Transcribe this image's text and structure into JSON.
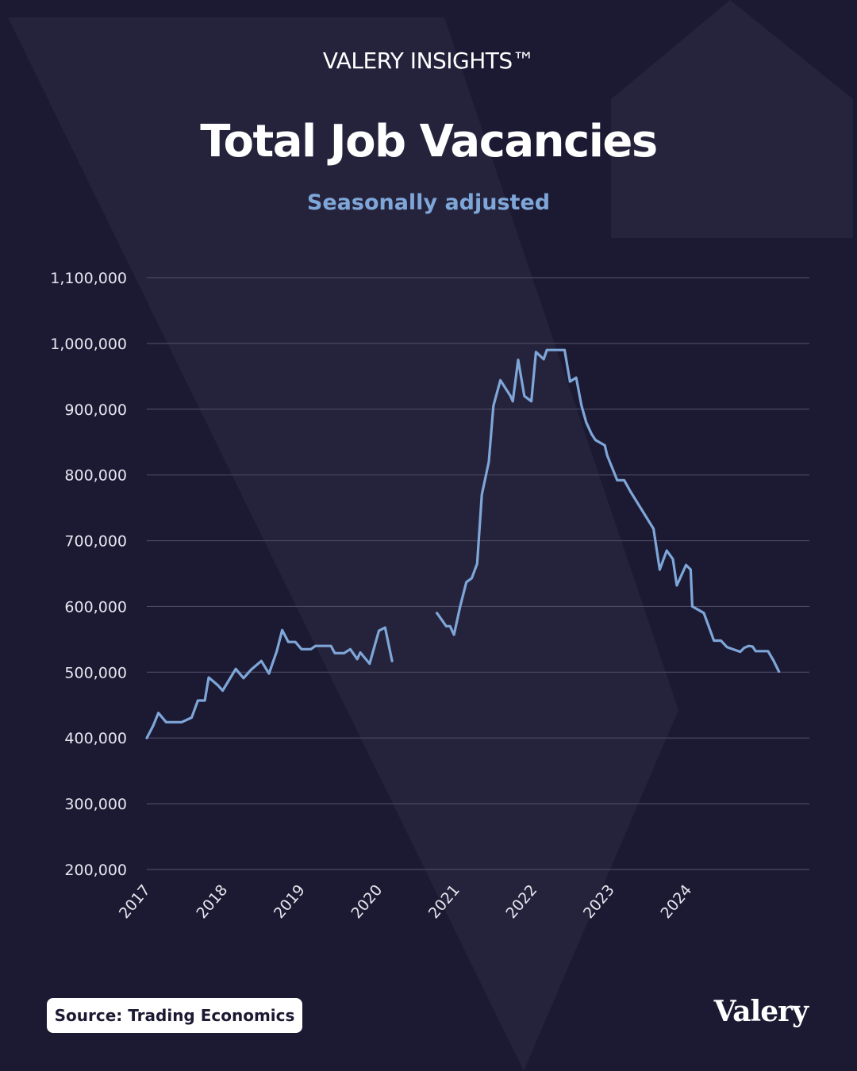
{
  "header": {
    "brand": "VALERY INSIGHTS™",
    "title": "Total Job Vacancies",
    "subtitle": "Seasonally adjusted"
  },
  "footer": {
    "source": "Source: Trading Economics",
    "logo": "Valery"
  },
  "colors": {
    "background": "#1c1a33",
    "line": "#7ea6d8",
    "grid": "#4a4862",
    "text": "#ffffff",
    "tick_text": "#e6e6ee"
  },
  "chart_data": {
    "type": "line",
    "title": "Total Job Vacancies",
    "subtitle": "Seasonally adjusted",
    "ylim": [
      200000,
      1100000
    ],
    "yticks": [
      1100000,
      1000000,
      900000,
      800000,
      700000,
      600000,
      500000,
      400000,
      300000,
      200000
    ],
    "ytick_labels": [
      "1,100,000",
      "1,000,000",
      "900,000",
      "800,000",
      "700,000",
      "600,000",
      "500,000",
      "400,000",
      "300,000",
      "200,000"
    ],
    "xticks": [
      2017,
      2018,
      2019,
      2020,
      2021,
      2022,
      2023,
      2024
    ],
    "xtick_labels": [
      "2017",
      "2018",
      "2019",
      "2020",
      "2021",
      "2022",
      "2023",
      "2024"
    ],
    "xlim": [
      2017.0,
      2025.5
    ],
    "grid": true,
    "series": [
      {
        "segments": [
          [
            [
              2017.0,
              400000
            ],
            [
              2017.08,
              418000
            ],
            [
              2017.15,
              438000
            ],
            [
              2017.25,
              424000
            ],
            [
              2017.33,
              424000
            ],
            [
              2017.45,
              424000
            ],
            [
              2017.58,
              431000
            ],
            [
              2017.66,
              457000
            ],
            [
              2017.75,
              457000
            ],
            [
              2017.8,
              492000
            ],
            [
              2017.92,
              480000
            ],
            [
              2017.98,
              472000
            ],
            [
              2018.15,
              505000
            ],
            [
              2018.25,
              491000
            ],
            [
              2018.35,
              504000
            ],
            [
              2018.48,
              517000
            ],
            [
              2018.58,
              498000
            ],
            [
              2018.68,
              532000
            ],
            [
              2018.75,
              564000
            ],
            [
              2018.83,
              546000
            ],
            [
              2018.92,
              546000
            ],
            [
              2019.0,
              535000
            ],
            [
              2019.12,
              535000
            ],
            [
              2019.18,
              540000
            ],
            [
              2019.25,
              540000
            ],
            [
              2019.38,
              540000
            ],
            [
              2019.43,
              529000
            ],
            [
              2019.55,
              529000
            ],
            [
              2019.63,
              535000
            ],
            [
              2019.72,
              520000
            ],
            [
              2019.76,
              530000
            ],
            [
              2019.88,
              513000
            ],
            [
              2020.0,
              563000
            ],
            [
              2020.08,
              568000
            ],
            [
              2020.17,
              517000
            ]
          ],
          [
            [
              2020.75,
              590000
            ],
            [
              2020.87,
              570000
            ],
            [
              2020.92,
              570000
            ],
            [
              2020.97,
              557000
            ],
            [
              2021.05,
              600000
            ],
            [
              2021.13,
              637000
            ],
            [
              2021.2,
              643000
            ],
            [
              2021.27,
              665000
            ],
            [
              2021.33,
              770000
            ],
            [
              2021.42,
              820000
            ],
            [
              2021.48,
              905000
            ],
            [
              2021.57,
              944000
            ],
            [
              2021.7,
              920000
            ],
            [
              2021.73,
              912000
            ],
            [
              2021.8,
              975000
            ],
            [
              2021.88,
              920000
            ],
            [
              2021.97,
              912000
            ],
            [
              2022.03,
              987000
            ],
            [
              2022.13,
              976000
            ],
            [
              2022.17,
              990000
            ],
            [
              2022.25,
              990000
            ],
            [
              2022.4,
              990000
            ],
            [
              2022.47,
              942000
            ],
            [
              2022.55,
              948000
            ],
            [
              2022.62,
              905000
            ],
            [
              2022.68,
              880000
            ],
            [
              2022.75,
              862000
            ],
            [
              2022.8,
              853000
            ],
            [
              2022.92,
              845000
            ],
            [
              2022.95,
              830000
            ],
            [
              2023.08,
              792000
            ],
            [
              2023.17,
              792000
            ],
            [
              2023.25,
              775000
            ],
            [
              2023.55,
              718000
            ],
            [
              2023.63,
              656000
            ],
            [
              2023.72,
              685000
            ],
            [
              2023.8,
              672000
            ],
            [
              2023.85,
              632000
            ],
            [
              2023.97,
              663000
            ],
            [
              2024.03,
              656000
            ],
            [
              2024.05,
              600000
            ],
            [
              2024.2,
              590000
            ],
            [
              2024.33,
              548000
            ],
            [
              2024.42,
              548000
            ],
            [
              2024.5,
              538000
            ],
            [
              2024.67,
              531000
            ],
            [
              2024.72,
              537000
            ],
            [
              2024.78,
              540000
            ],
            [
              2024.83,
              539000
            ],
            [
              2024.87,
              532000
            ],
            [
              2024.92,
              532000
            ],
            [
              2025.03,
              532000
            ],
            [
              2025.1,
              518000
            ],
            [
              2025.17,
              501000
            ]
          ]
        ]
      }
    ]
  }
}
